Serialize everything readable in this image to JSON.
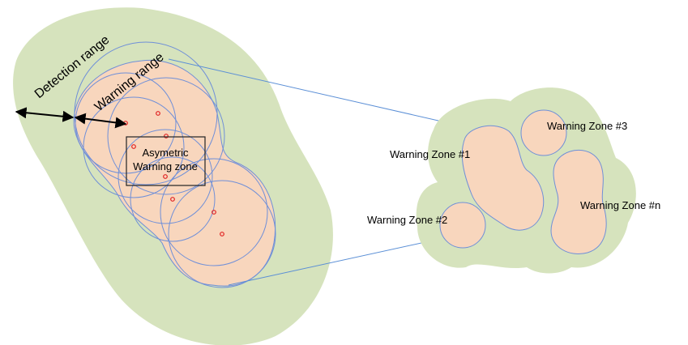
{
  "labels": {
    "detection_range": "Detection range",
    "warning_range": "Warning range",
    "asym_line1": "Asymetric",
    "asym_line2": "Warning zone",
    "zone1": "Warning Zone #1",
    "zone2": "Warning Zone #2",
    "zone3": "Warning Zone #3",
    "zonen": "Warning Zone #n"
  },
  "colors": {
    "detection_fill": "#d6e3bd",
    "warning_fill": "#f8d6bd",
    "circle_stroke": "#6f8fd8",
    "marker": "#e02020",
    "connector": "#5b8fd6"
  }
}
